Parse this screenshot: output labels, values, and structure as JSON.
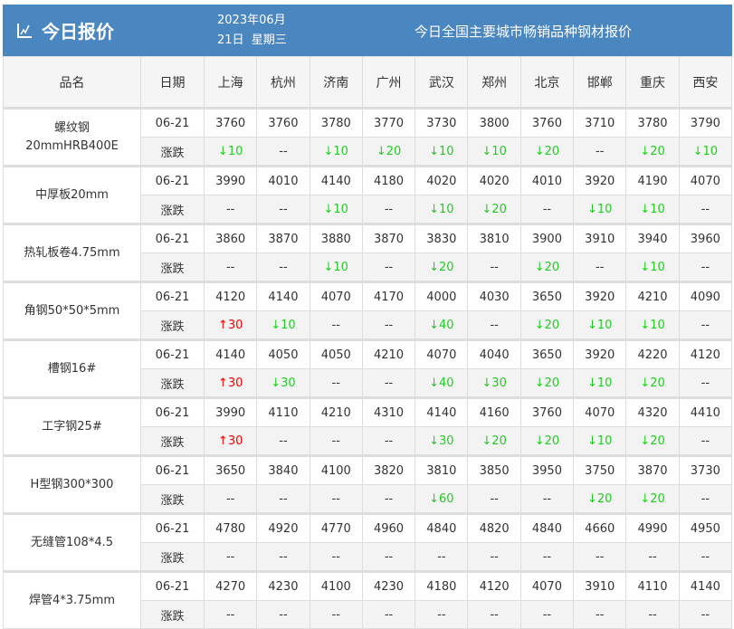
{
  "header": {
    "title": "今日报价",
    "icon": "line-chart-icon",
    "date_line1": "2023年06月",
    "date_line2": "21日  星期三",
    "subtitle": "今日全国主要城市畅销品种钢材报价"
  },
  "colors": {
    "banner": "#4a86c0",
    "up": "#ff0000",
    "down": "#22cc22"
  },
  "table": {
    "col_name": "品名",
    "col_date": "日期",
    "cities": [
      "上海",
      "杭州",
      "济南",
      "广州",
      "武汉",
      "郑州",
      "北京",
      "邯郸",
      "重庆",
      "西安"
    ],
    "change_label": "涨跌",
    "rows": [
      {
        "name": "螺纹钢\n20mmHRB400E",
        "date": "06-21",
        "prices": [
          "3760",
          "3760",
          "3780",
          "3770",
          "3730",
          "3800",
          "3760",
          "3710",
          "3780",
          "3790"
        ],
        "changes": [
          "↓10",
          "--",
          "↓10",
          "↓20",
          "↓10",
          "↓10",
          "↓20",
          "--",
          "↓20",
          "↓10"
        ]
      },
      {
        "name": "中厚板20mm",
        "date": "06-21",
        "prices": [
          "3990",
          "4010",
          "4140",
          "4180",
          "4020",
          "4020",
          "4010",
          "3920",
          "4190",
          "4070"
        ],
        "changes": [
          "--",
          "--",
          "↓10",
          "--",
          "↓10",
          "↓20",
          "--",
          "↓10",
          "↓10",
          "--"
        ]
      },
      {
        "name": "热轧板卷4.75mm",
        "date": "06-21",
        "prices": [
          "3860",
          "3870",
          "3880",
          "3870",
          "3830",
          "3810",
          "3900",
          "3910",
          "3940",
          "3960"
        ],
        "changes": [
          "--",
          "--",
          "↓10",
          "--",
          "↓20",
          "--",
          "↓20",
          "--",
          "↓10",
          "--"
        ]
      },
      {
        "name": "角钢50*50*5mm",
        "date": "06-21",
        "prices": [
          "4120",
          "4140",
          "4070",
          "4170",
          "4000",
          "4030",
          "3650",
          "3920",
          "4210",
          "4090"
        ],
        "changes": [
          "↑30",
          "↓10",
          "--",
          "--",
          "↓40",
          "--",
          "↓20",
          "↓10",
          "↓10",
          "--"
        ]
      },
      {
        "name": "槽钢16#",
        "date": "06-21",
        "prices": [
          "4140",
          "4050",
          "4050",
          "4210",
          "4070",
          "4040",
          "3650",
          "3920",
          "4220",
          "4120"
        ],
        "changes": [
          "↑30",
          "↓30",
          "--",
          "--",
          "↓40",
          "↓30",
          "↓20",
          "↓10",
          "↓20",
          "--"
        ]
      },
      {
        "name": "工字钢25#",
        "date": "06-21",
        "prices": [
          "3990",
          "4110",
          "4210",
          "4310",
          "4140",
          "4160",
          "3760",
          "4070",
          "4320",
          "4410"
        ],
        "changes": [
          "↑30",
          "--",
          "--",
          "--",
          "↓30",
          "↓20",
          "↓20",
          "↓10",
          "↓20",
          "--"
        ]
      },
      {
        "name": "H型钢300*300",
        "date": "06-21",
        "prices": [
          "3650",
          "3840",
          "4100",
          "3820",
          "3810",
          "3850",
          "3950",
          "3750",
          "3870",
          "3730"
        ],
        "changes": [
          "--",
          "--",
          "--",
          "--",
          "↓60",
          "--",
          "--",
          "↓20",
          "↓20",
          "--"
        ]
      },
      {
        "name": "无缝管108*4.5",
        "date": "06-21",
        "prices": [
          "4780",
          "4920",
          "4770",
          "4960",
          "4840",
          "4820",
          "4840",
          "4660",
          "4990",
          "4950"
        ],
        "changes": [
          "--",
          "--",
          "--",
          "--",
          "--",
          "--",
          "--",
          "--",
          "--",
          "--"
        ]
      },
      {
        "name": "焊管4*3.75mm",
        "date": "06-21",
        "prices": [
          "4270",
          "4230",
          "4100",
          "4230",
          "4180",
          "4120",
          "4070",
          "3910",
          "4110",
          "4140"
        ],
        "changes": [
          "--",
          "--",
          "--",
          "--",
          "--",
          "--",
          "--",
          "--",
          "--",
          "--"
        ]
      }
    ]
  }
}
